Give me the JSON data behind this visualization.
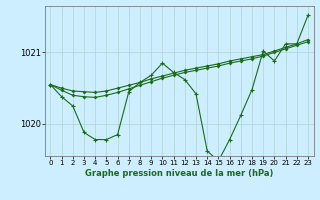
{
  "title": "Graphe pression niveau de la mer (hPa)",
  "background_color": "#cceeff",
  "grid_color": "#b0d4d4",
  "line_color": "#1a6b1a",
  "xlim": [
    -0.5,
    23.5
  ],
  "ylim": [
    1019.55,
    1021.65
  ],
  "yticks": [
    1020,
    1021
  ],
  "xticks": [
    0,
    1,
    2,
    3,
    4,
    5,
    6,
    7,
    8,
    9,
    10,
    11,
    12,
    13,
    14,
    15,
    16,
    17,
    18,
    19,
    20,
    21,
    22,
    23
  ],
  "series_volatile": [
    1020.55,
    1020.38,
    1020.25,
    1019.88,
    1019.78,
    1019.78,
    1019.85,
    1020.45,
    1020.58,
    1020.68,
    1020.85,
    1020.72,
    1020.62,
    1020.42,
    1019.62,
    1019.48,
    1019.78,
    1020.12,
    1020.48,
    1021.02,
    1020.88,
    1021.12,
    1021.12,
    1021.52
  ],
  "series_trend1": [
    1020.55,
    1020.5,
    1020.46,
    1020.45,
    1020.44,
    1020.46,
    1020.5,
    1020.54,
    1020.58,
    1020.63,
    1020.67,
    1020.71,
    1020.75,
    1020.78,
    1020.81,
    1020.84,
    1020.88,
    1020.91,
    1020.94,
    1020.97,
    1021.02,
    1021.07,
    1021.12,
    1021.18
  ],
  "series_trend2": [
    1020.55,
    1020.47,
    1020.4,
    1020.38,
    1020.37,
    1020.4,
    1020.44,
    1020.49,
    1020.54,
    1020.59,
    1020.64,
    1020.68,
    1020.72,
    1020.75,
    1020.78,
    1020.81,
    1020.85,
    1020.88,
    1020.91,
    1020.95,
    1021.0,
    1021.05,
    1021.1,
    1021.15
  ]
}
